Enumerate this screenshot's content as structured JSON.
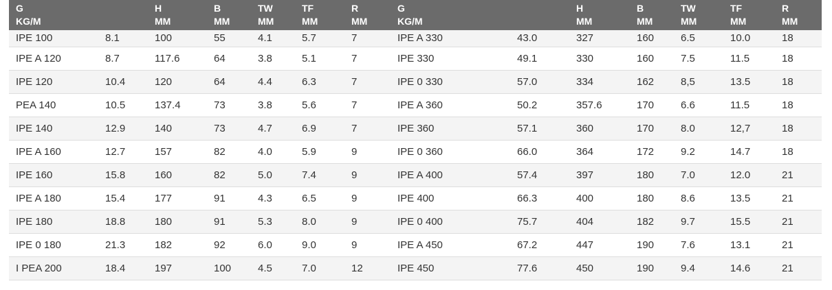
{
  "headers": [
    {
      "l1": "G",
      "l2": "KG/M"
    },
    {
      "l1": "",
      "l2": ""
    },
    {
      "l1": "H",
      "l2": "MM"
    },
    {
      "l1": "B",
      "l2": "MM"
    },
    {
      "l1": "TW",
      "l2": "MM"
    },
    {
      "l1": "TF",
      "l2": "MM"
    },
    {
      "l1": "R",
      "l2": "MM"
    },
    {
      "l1": "G",
      "l2": "KG/M"
    },
    {
      "l1": "",
      "l2": ""
    },
    {
      "l1": "H",
      "l2": "MM"
    },
    {
      "l1": "B",
      "l2": "MM"
    },
    {
      "l1": "TW",
      "l2": "MM"
    },
    {
      "l1": "TF",
      "l2": "MM"
    },
    {
      "l1": "R",
      "l2": "MM"
    }
  ],
  "rows": [
    [
      "IPE 100",
      "8.1",
      "100",
      "55",
      "4.1",
      "5.7",
      "7",
      "IPE A 330",
      "43.0",
      "327",
      "160",
      "6.5",
      "10.0",
      "18"
    ],
    [
      "IPE A 120",
      "8.7",
      "117.6",
      "64",
      "3.8",
      "5.1",
      "7",
      "IPE 330",
      "49.1",
      "330",
      "160",
      "7.5",
      "11.5",
      "18"
    ],
    [
      "IPE 120",
      "10.4",
      "120",
      "64",
      "4.4",
      "6.3",
      "7",
      "IPE 0 330",
      "57.0",
      "334",
      "162",
      "8,5",
      "13.5",
      "18"
    ],
    [
      "PEA 140",
      "10.5",
      "137.4",
      "73",
      "3.8",
      "5.6",
      "7",
      "IPE A 360",
      "50.2",
      "357.6",
      "170",
      "6.6",
      "11.5",
      "18"
    ],
    [
      "IPE 140",
      "12.9",
      "140",
      "73",
      "4.7",
      "6.9",
      "7",
      "IPE 360",
      "57.1",
      "360",
      "170",
      "8.0",
      "12,7",
      "18"
    ],
    [
      "IPE A 160",
      "12.7",
      "157",
      "82",
      "4.0",
      "5.9",
      "9",
      "IPE 0 360",
      "66.0",
      "364",
      "172",
      "9.2",
      "14.7",
      "18"
    ],
    [
      "IPE 160",
      "15.8",
      "160",
      "82",
      "5.0",
      "7.4",
      "9",
      "IPE A 400",
      "57.4",
      "397",
      "180",
      "7.0",
      "12.0",
      "21"
    ],
    [
      "IPE A 180",
      "15.4",
      "177",
      "91",
      "4.3",
      "6.5",
      "9",
      "IPE 400",
      "66.3",
      "400",
      "180",
      "8.6",
      "13.5",
      "21"
    ],
    [
      "IPE 180",
      "18.8",
      "180",
      "91",
      "5.3",
      "8.0",
      "9",
      "IPE 0 400",
      "75.7",
      "404",
      "182",
      "9.7",
      "15.5",
      "21"
    ],
    [
      "IPE 0 180",
      "21.3",
      "182",
      "92",
      "6.0",
      "9.0",
      "9",
      "IPE A 450",
      "67.2",
      "447",
      "190",
      "7.6",
      "13.1",
      "21"
    ],
    [
      "I PEA 200",
      "18.4",
      "197",
      "100",
      "4.5",
      "7.0",
      "12",
      "IPE 450",
      "77.6",
      "450",
      "190",
      "9.4",
      "14.6",
      "21"
    ]
  ]
}
